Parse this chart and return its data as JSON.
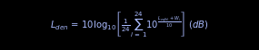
{
  "formula": "$L_{den} \\, = \\, 10 \\log_{10}\\!\\left[\\frac{1}{24}\\sum_{i\\,=\\,1}^{24} 10^{\\frac{L_{eq(h)}+W_i}{10}}\\right] \\; (dB)$",
  "figsize": [
    2.85,
    0.56
  ],
  "dpi": 100,
  "bg_color": "#000000",
  "text_color": "#aabbff",
  "fontsize": 7.2
}
